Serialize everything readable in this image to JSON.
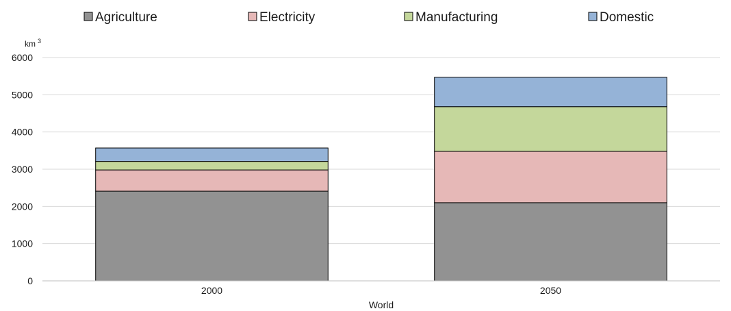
{
  "chart_data": {
    "type": "bar",
    "stacked": true,
    "categories": [
      "2000",
      "2050"
    ],
    "xlabel": "World",
    "ylabel": "km",
    "ylabel_superscript": "3",
    "ylim": [
      0,
      6000
    ],
    "yticks": [
      "0",
      "1000",
      "2000",
      "3000",
      "4000",
      "5000",
      "6000"
    ],
    "grid": "horizontal",
    "legend_position": "top",
    "series": [
      {
        "name": "Agriculture",
        "color": "#929292",
        "values": [
          2410,
          2100
        ]
      },
      {
        "name": "Electricity",
        "color": "#e6b8b7",
        "values": [
          570,
          1380
        ]
      },
      {
        "name": "Manufacturing",
        "color": "#c4d79b",
        "values": [
          230,
          1200
        ]
      },
      {
        "name": "Domestic",
        "color": "#95b3d7",
        "values": [
          360,
          790
        ]
      }
    ]
  }
}
